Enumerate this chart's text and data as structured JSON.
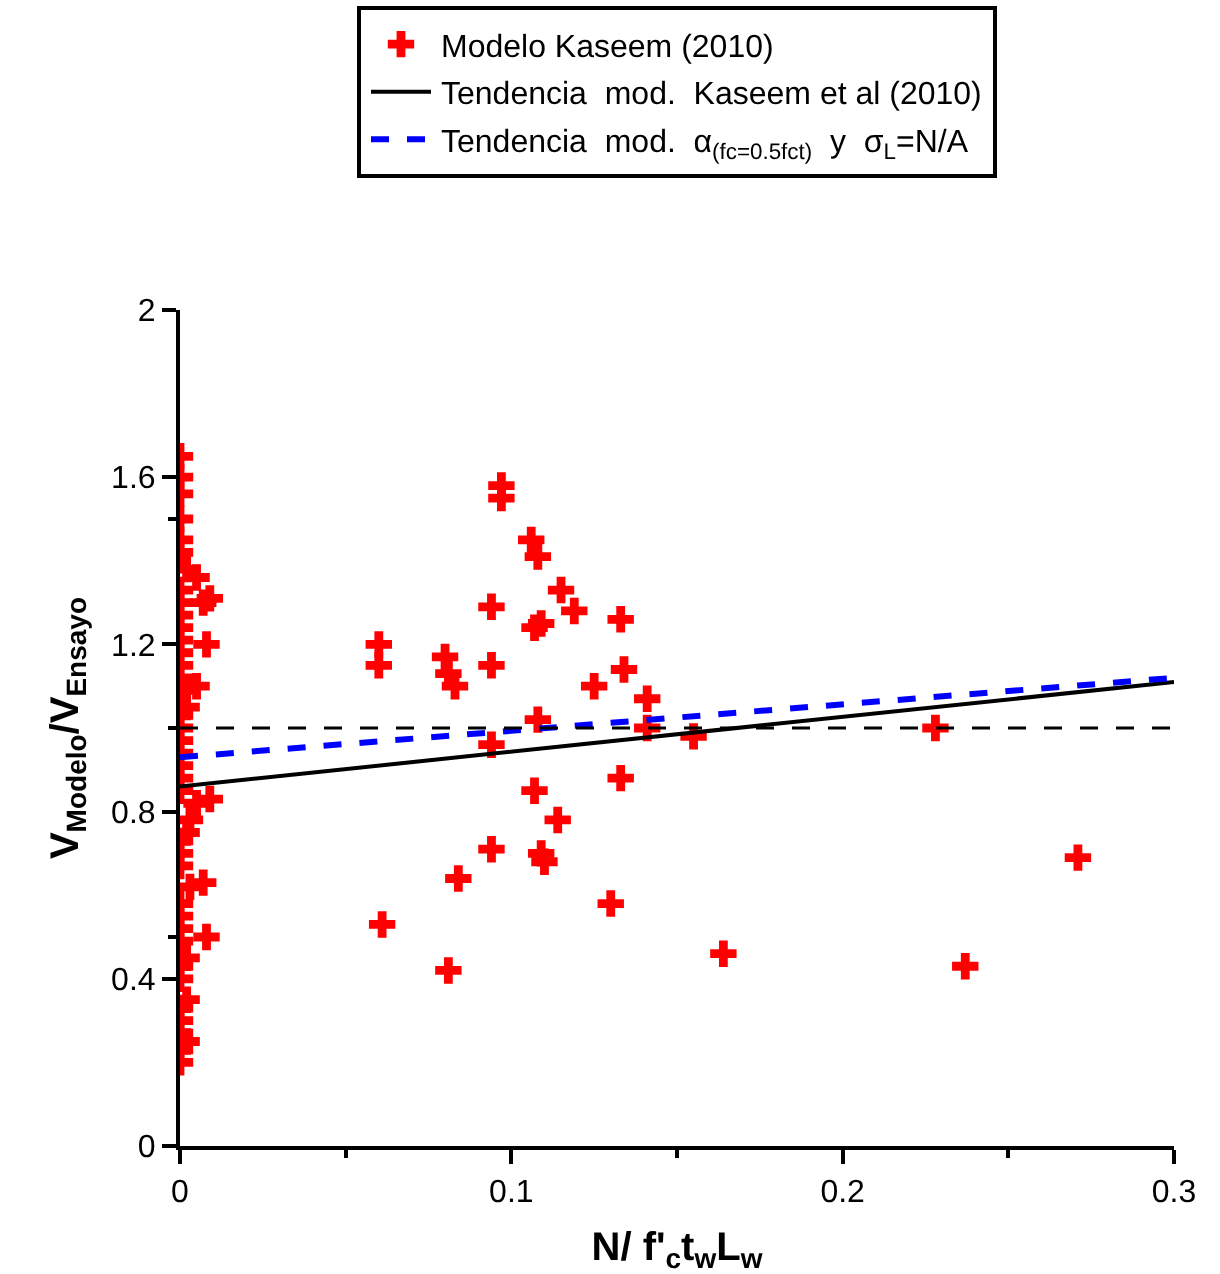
{
  "chart_data": {
    "type": "scatter",
    "xlabel": "N/ f'$_{c}$t$_{w}$L$_{w}$",
    "ylabel": "V$_{Modelo}$/V$_{Ensayo}$",
    "xlim": [
      0,
      0.3
    ],
    "xticks": [
      0,
      0.1,
      0.2,
      0.3
    ],
    "ylim": [
      0,
      2
    ],
    "yticks": [
      0,
      0.4,
      0.8,
      1.2,
      1.6,
      2
    ],
    "grid": false,
    "legend": "top",
    "marker": "cross",
    "series": [
      {
        "name": "Modelo Kaseem (2010)",
        "color": "#ff0000",
        "x": [
          0,
          0,
          0,
          0,
          0,
          0,
          0,
          0,
          0,
          0,
          0,
          0,
          0,
          0,
          0,
          0,
          0,
          0,
          0,
          0,
          0,
          0,
          0,
          0,
          0,
          0,
          0,
          0,
          0,
          0,
          0,
          0,
          0,
          0,
          0,
          0,
          0.002,
          0.002,
          0.002,
          0.002,
          0.002,
          0.002,
          0.003,
          0.003,
          0.005,
          0.007,
          0.009,
          0.008,
          0.005,
          0.009,
          0.007,
          0.008,
          0.005,
          0.06,
          0.06,
          0.061,
          0.08,
          0.081,
          0.083,
          0.081,
          0.084,
          0.094,
          0.094,
          0.094,
          0.094,
          0.097,
          0.097,
          0.106,
          0.108,
          0.107,
          0.109,
          0.108,
          0.107,
          0.109,
          0.11,
          0.115,
          0.114,
          0.119,
          0.125,
          0.13,
          0.133,
          0.134,
          0.133,
          0.141,
          0.141,
          0.155,
          0.164,
          0.228,
          0.237,
          0.271
        ],
        "values": [
          0.2,
          0.23,
          0.27,
          0.3,
          0.33,
          0.4,
          0.43,
          0.49,
          0.52,
          0.55,
          0.58,
          0.67,
          0.7,
          0.73,
          0.85,
          0.88,
          0.91,
          0.94,
          0.97,
          1.0,
          1.03,
          1.09,
          1.12,
          1.15,
          1.18,
          1.21,
          1.24,
          1.27,
          1.3,
          1.33,
          1.42,
          1.45,
          1.5,
          1.56,
          1.6,
          1.65,
          0.25,
          0.35,
          0.45,
          0.75,
          1.05,
          1.38,
          0.62,
          0.78,
          1.1,
          1.3,
          1.31,
          1.2,
          0.82,
          0.83,
          0.63,
          0.5,
          1.36,
          1.2,
          1.15,
          0.53,
          1.17,
          1.13,
          1.1,
          0.42,
          0.64,
          1.29,
          1.15,
          0.96,
          0.71,
          1.58,
          1.55,
          1.45,
          1.41,
          1.24,
          1.25,
          1.02,
          0.85,
          0.7,
          0.68,
          1.33,
          0.78,
          1.28,
          1.1,
          0.58,
          1.26,
          1.14,
          0.88,
          1.07,
          1.0,
          0.98,
          0.46,
          1.0,
          0.43,
          0.69
        ]
      },
      {
        "name": "Tendencia  mod.  Kaseem et al (2010)",
        "type": "line",
        "color": "#000000",
        "line_style": "solid",
        "marker": "none",
        "x": [
          0,
          0.3
        ],
        "values": [
          0.86,
          1.11
        ]
      },
      {
        "name": "Tendencia  mod.  α$_{(fc=0.5fct)}$  y  σ$_{L}$=N/A",
        "type": "line",
        "color": "#0000ff",
        "line_style": "dashed",
        "marker": "none",
        "x": [
          0,
          0.3
        ],
        "values": [
          0.93,
          1.12
        ]
      }
    ],
    "ref_lines": [
      {
        "axis": "y",
        "value": 1,
        "color": "#000000",
        "line_style": "dashed"
      }
    ]
  }
}
